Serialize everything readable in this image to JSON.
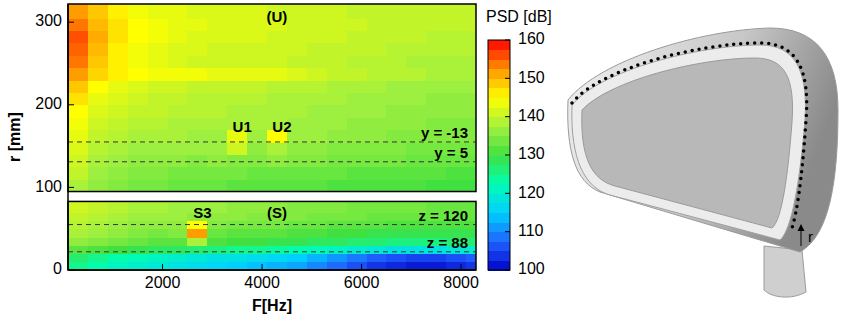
{
  "chart_data": {
    "type": "heatmap",
    "x_label": "F[Hz]",
    "y_label": "r [mm]",
    "xlim": [
      100,
      8300
    ],
    "ylim": [
      0,
      322
    ],
    "xticks": [
      2000,
      4000,
      6000,
      8000
    ],
    "yticks": [
      0,
      100,
      200,
      300
    ],
    "x_edges": [
      100,
      500,
      900,
      1300,
      1700,
      2100,
      2500,
      2900,
      3300,
      3700,
      4100,
      4500,
      4900,
      5300,
      5700,
      6100,
      6500,
      6900,
      7300,
      7700,
      8100,
      8300
    ],
    "y_edges": [
      0,
      10,
      20,
      30,
      40,
      50,
      60,
      70,
      83,
      95,
      110,
      125,
      140,
      155,
      170,
      185,
      200,
      215,
      230,
      245,
      260,
      275,
      290,
      305,
      322
    ],
    "cells": [
      [
        125,
        123,
        121,
        120,
        119,
        118,
        117,
        116,
        115,
        114,
        113,
        112,
        110,
        108,
        106,
        104,
        103,
        102,
        102,
        103,
        104
      ],
      [
        127,
        125,
        123,
        122,
        121,
        120,
        119,
        118,
        118,
        117,
        116,
        115,
        113,
        111,
        109,
        107,
        106,
        105,
        105,
        106,
        107
      ],
      [
        132,
        131,
        130,
        129,
        128,
        128,
        127,
        126,
        125,
        125,
        124,
        123,
        122,
        121,
        120,
        119,
        118,
        118,
        118,
        119,
        120
      ],
      [
        136,
        135,
        134,
        133,
        132,
        132,
        138,
        131,
        130,
        130,
        129,
        129,
        128,
        128,
        127,
        127,
        126,
        126,
        126,
        127,
        127
      ],
      [
        138,
        137,
        136,
        135,
        134,
        135,
        152,
        133,
        132,
        132,
        132,
        131,
        131,
        130,
        130,
        129,
        129,
        129,
        129,
        129,
        129
      ],
      [
        139,
        138,
        137,
        136,
        136,
        136,
        145,
        135,
        134,
        134,
        134,
        133,
        133,
        132,
        132,
        132,
        131,
        131,
        131,
        131,
        131
      ],
      [
        140,
        139,
        138,
        137,
        137,
        137,
        136,
        136,
        136,
        135,
        135,
        135,
        134,
        134,
        134,
        133,
        133,
        133,
        133,
        133,
        133
      ],
      [
        141,
        140,
        139,
        138,
        138,
        137,
        137,
        137,
        136,
        136,
        136,
        135,
        135,
        135,
        134,
        134,
        134,
        134,
        133,
        133,
        133
      ],
      [
        null,
        null,
        null,
        null,
        null,
        null,
        null,
        null,
        null,
        null,
        null,
        null,
        null,
        null,
        null,
        null,
        null,
        null,
        null,
        null,
        null
      ],
      [
        138,
        136,
        135,
        134,
        134,
        133,
        133,
        133,
        132,
        132,
        132,
        132,
        132,
        131,
        131,
        131,
        131,
        131,
        130,
        130,
        130
      ],
      [
        140,
        137,
        136,
        135,
        135,
        134,
        134,
        134,
        134,
        133,
        133,
        133,
        133,
        133,
        132,
        132,
        132,
        132,
        132,
        131,
        131
      ],
      [
        141,
        138,
        137,
        136,
        136,
        136,
        135,
        136,
        135,
        135,
        136,
        135,
        135,
        134,
        134,
        134,
        134,
        133,
        133,
        133,
        133
      ],
      [
        142,
        139,
        138,
        137,
        137,
        137,
        137,
        137,
        141,
        136,
        138,
        136,
        136,
        135,
        135,
        135,
        135,
        134,
        134,
        134,
        134
      ],
      [
        143,
        140,
        139,
        138,
        138,
        138,
        137,
        137,
        143,
        137,
        145,
        137,
        137,
        136,
        136,
        136,
        135,
        135,
        135,
        135,
        135
      ],
      [
        144,
        141,
        140,
        139,
        139,
        138,
        138,
        138,
        138,
        138,
        138,
        137,
        137,
        137,
        136,
        136,
        136,
        136,
        135,
        135,
        135
      ],
      [
        145,
        142,
        141,
        140,
        140,
        139,
        139,
        139,
        138,
        138,
        138,
        138,
        137,
        137,
        137,
        137,
        136,
        136,
        136,
        136,
        136
      ],
      [
        147,
        143,
        142,
        141,
        140,
        140,
        139,
        139,
        139,
        139,
        138,
        138,
        138,
        138,
        137,
        137,
        137,
        137,
        136,
        136,
        136
      ],
      [
        149,
        145,
        143,
        142,
        141,
        141,
        140,
        140,
        140,
        140,
        139,
        139,
        139,
        138,
        138,
        138,
        137,
        137,
        137,
        137,
        137
      ],
      [
        152,
        148,
        146,
        145,
        144,
        144,
        144,
        143,
        143,
        143,
        143,
        142,
        141,
        140,
        140,
        139,
        139,
        139,
        138,
        138,
        138
      ],
      [
        154,
        149,
        146,
        144,
        143,
        142,
        141,
        141,
        141,
        141,
        141,
        140,
        140,
        140,
        139,
        139,
        139,
        138,
        138,
        138,
        138
      ],
      [
        155,
        150,
        146,
        144,
        143,
        142,
        142,
        141,
        141,
        141,
        141,
        141,
        140,
        140,
        140,
        140,
        139,
        139,
        139,
        139,
        139
      ],
      [
        156,
        151,
        147,
        145,
        144,
        143,
        142,
        142,
        142,
        142,
        141,
        141,
        141,
        141,
        140,
        140,
        140,
        140,
        139,
        139,
        139
      ],
      [
        154,
        150,
        147,
        145,
        144,
        143,
        143,
        142,
        142,
        142,
        142,
        141,
        141,
        141,
        141,
        140,
        140,
        140,
        140,
        140,
        140
      ],
      [
        152,
        149,
        146,
        144,
        143,
        143,
        142,
        142,
        142,
        142,
        141,
        141,
        141,
        141,
        140,
        140,
        140,
        140,
        140,
        140,
        140
      ]
    ],
    "colorbar": {
      "label": "PSD [dB]",
      "range": [
        100,
        160
      ],
      "ticks": [
        100,
        110,
        120,
        130,
        140,
        150,
        160
      ]
    },
    "panels": [
      {
        "label": "(U)",
        "range": [
          95,
          322
        ]
      },
      {
        "label": "(S)",
        "range": [
          0,
          83
        ]
      }
    ],
    "reference_lines": [
      {
        "label": "y = -13",
        "value": 155
      },
      {
        "label": "y = 5",
        "value": 131
      },
      {
        "label": "z = 120",
        "value": 55
      },
      {
        "label": "z = 88",
        "value": 22
      }
    ],
    "annotations": [
      {
        "text": "(U)",
        "x": 4300,
        "y": 305
      },
      {
        "text": "U1",
        "x": 3600,
        "y": 172
      },
      {
        "text": "U2",
        "x": 4400,
        "y": 172
      },
      {
        "text": "S3",
        "x": 2800,
        "y": 68
      },
      {
        "text": "(S)",
        "x": 4300,
        "y": 68
      }
    ],
    "illustration": {
      "label": "r"
    }
  }
}
